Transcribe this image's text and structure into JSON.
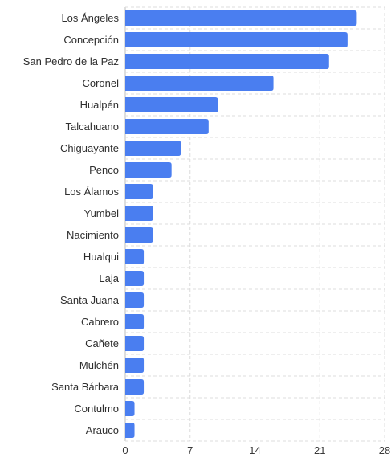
{
  "chart_data": {
    "type": "bar",
    "orientation": "horizontal",
    "categories": [
      "Los Ángeles",
      "Concepción",
      "San Pedro de la Paz",
      "Coronel",
      "Hualpén",
      "Talcahuano",
      "Chiguayante",
      "Penco",
      "Los Álamos",
      "Yumbel",
      "Nacimiento",
      "Hualqui",
      "Laja",
      "Santa Juana",
      "Cabrero",
      "Cañete",
      "Mulchén",
      "Santa Bárbara",
      "Contulmo",
      "Arauco"
    ],
    "values": [
      25,
      24,
      22,
      16,
      10,
      9,
      6,
      5,
      3,
      3,
      3,
      2,
      2,
      2,
      2,
      2,
      2,
      2,
      1,
      1
    ],
    "xlim": [
      0,
      28
    ],
    "xticks": [
      "0",
      "7",
      "14",
      "21",
      "28"
    ],
    "title": "",
    "xlabel": "",
    "ylabel": "",
    "grid": true,
    "legend": "none",
    "bar_color": "#4a7ef0"
  }
}
